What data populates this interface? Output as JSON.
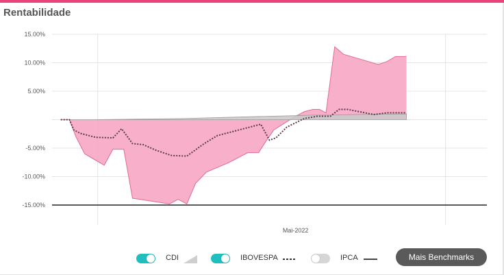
{
  "panel": {
    "title": "Rentabilidade",
    "accent_color": "#ec407a"
  },
  "legend": {
    "items": [
      {
        "label": "CDI",
        "enabled": true,
        "toggle_color": "#1fbfbf",
        "swatch": "gray-area-swatch"
      },
      {
        "label": "IBOVESPA",
        "enabled": true,
        "toggle_color": "#1fbfbf",
        "swatch": "dotted-line-swatch"
      },
      {
        "label": "IPCA",
        "enabled": false,
        "toggle_color": "#d6d6d6",
        "swatch": "solid-line-swatch"
      }
    ],
    "more_button": {
      "label": "Mais Benchmarks",
      "color": "#5a5a5a"
    }
  },
  "chart_data": {
    "type": "area",
    "title": "",
    "xlabel": "",
    "ylabel": "",
    "ylim": [
      -15,
      15
    ],
    "y_ticks": [
      {
        "value": 15,
        "label": "15.00%"
      },
      {
        "value": 10,
        "label": "10.00%"
      },
      {
        "value": 5,
        "label": "5.00%"
      },
      {
        "value": -5,
        "label": "-5.00%"
      },
      {
        "value": -10,
        "label": "-10.00%"
      },
      {
        "value": -15,
        "label": "-15.00%"
      }
    ],
    "x_range": [
      0,
      100
    ],
    "x_tick": {
      "value": 56,
      "label": "Mai-2022"
    },
    "x_gridlines": [
      10.5,
      90.5
    ],
    "grid": true,
    "reference_line": {
      "value": -15,
      "color": "#222222"
    },
    "series": [
      {
        "style": "area",
        "color": "#f7a6c4",
        "edge_color": "#e06a97",
        "points": [
          [
            2,
            0
          ],
          [
            4,
            0
          ],
          [
            5.5,
            -3
          ],
          [
            7.5,
            -6
          ],
          [
            12,
            -8
          ],
          [
            14,
            -5.2
          ],
          [
            16.5,
            -5.2
          ],
          [
            18.5,
            -13.8
          ],
          [
            27,
            -14.8
          ],
          [
            29,
            -14
          ],
          [
            31,
            -14.8
          ],
          [
            33,
            -11.2
          ],
          [
            35.5,
            -9.2
          ],
          [
            40.5,
            -7.6
          ],
          [
            45,
            -5.8
          ],
          [
            47.5,
            -5.8
          ],
          [
            49,
            -4
          ],
          [
            51,
            -1.8
          ],
          [
            56,
            0.6
          ],
          [
            58,
            1.4
          ],
          [
            60,
            1.8
          ],
          [
            61.5,
            1.8
          ],
          [
            63,
            1.2
          ],
          [
            65,
            12.8
          ],
          [
            67,
            11.5
          ],
          [
            75,
            9.7
          ],
          [
            77,
            10.2
          ],
          [
            79,
            11.1
          ],
          [
            81.5,
            11.1
          ]
        ]
      },
      {
        "style": "gray-area",
        "color": "#c9c9c9",
        "points": [
          [
            2,
            0
          ],
          [
            10,
            0
          ],
          [
            20,
            0.1
          ],
          [
            30,
            0.2
          ],
          [
            40,
            0.4
          ],
          [
            50,
            0.6
          ],
          [
            56,
            0.7
          ],
          [
            60,
            0.8
          ],
          [
            64,
            0.8
          ],
          [
            70,
            0.9
          ],
          [
            81.5,
            1.0
          ]
        ]
      },
      {
        "style": "dotted",
        "color": "#5a3a4a",
        "points": [
          [
            2,
            0
          ],
          [
            4,
            0
          ],
          [
            5,
            -1.8
          ],
          [
            6.5,
            -2.4
          ],
          [
            10,
            -3.1
          ],
          [
            14,
            -3.2
          ],
          [
            16,
            -1.6
          ],
          [
            18.5,
            -4.2
          ],
          [
            21,
            -4.4
          ],
          [
            24,
            -5.4
          ],
          [
            27.5,
            -6.3
          ],
          [
            31,
            -6.4
          ],
          [
            35,
            -4.2
          ],
          [
            38,
            -2.8
          ],
          [
            42,
            -2
          ],
          [
            45,
            -1.4
          ],
          [
            48,
            -0.8
          ],
          [
            50,
            -3.6
          ],
          [
            51.5,
            -3.2
          ],
          [
            54,
            -1.3
          ],
          [
            58,
            0.2
          ],
          [
            61,
            0.6
          ],
          [
            64,
            0.6
          ],
          [
            66,
            1.8
          ],
          [
            68,
            1.8
          ],
          [
            74,
            0.9
          ],
          [
            77,
            1.2
          ],
          [
            81.5,
            1.2
          ]
        ]
      }
    ]
  }
}
